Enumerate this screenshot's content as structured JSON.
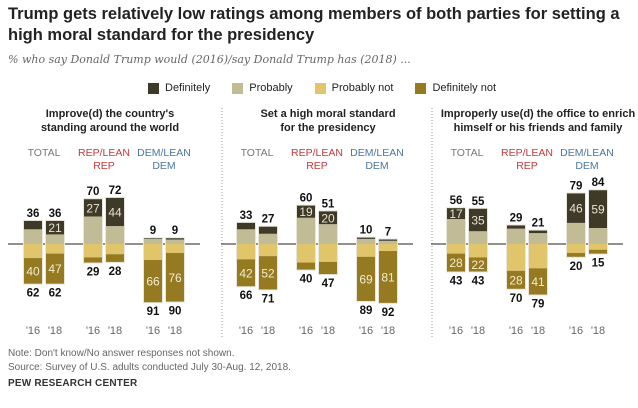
{
  "title": "Trump gets relatively low ratings among members of both parties for setting a high moral standard for the presidency",
  "subtitle": "% who say Donald Trump would (2016)/say Donald Trump has (2018) ...",
  "legend": [
    {
      "label": "Definitely",
      "color": "#3f3a28"
    },
    {
      "label": "Probably",
      "color": "#c2bc96"
    },
    {
      "label": "Probably not",
      "color": "#e0c56a"
    },
    {
      "label": "Definitely not",
      "color": "#957a22"
    }
  ],
  "group_colors": {
    "TOTAL": "#777777",
    "REP/LEAN REP": "#c8383a",
    "DEM/LEAN DEM": "#4b76a0"
  },
  "chart_data": {
    "type": "bar",
    "stacked": "diverging",
    "years": [
      "'16",
      "'18"
    ],
    "groups": [
      "TOTAL",
      "REP/LEAN REP",
      "DEM/LEAN DEM"
    ],
    "panels": [
      {
        "title_lines": [
          "Improve(d) the country's",
          "standing around the world"
        ],
        "bars": [
          {
            "group": "TOTAL",
            "year": "'16",
            "definitely": 13,
            "positive_total": 36,
            "definitely_not": 40,
            "negative_total": 62
          },
          {
            "group": "TOTAL",
            "year": "'18",
            "definitely": 21,
            "positive_total": 36,
            "definitely_not": 47,
            "negative_total": 62
          },
          {
            "group": "REP/LEAN REP",
            "year": "'16",
            "definitely": 27,
            "positive_total": 70,
            "definitely_not": 8,
            "negative_total": 29
          },
          {
            "group": "REP/LEAN REP",
            "year": "'18",
            "definitely": 44,
            "positive_total": 72,
            "definitely_not": 12,
            "negative_total": 28
          },
          {
            "group": "DEM/LEAN DEM",
            "year": "'16",
            "definitely": 1,
            "positive_total": 9,
            "definitely_not": 66,
            "negative_total": 91
          },
          {
            "group": "DEM/LEAN DEM",
            "year": "'18",
            "definitely": 2,
            "positive_total": 9,
            "definitely_not": 76,
            "negative_total": 90
          }
        ]
      },
      {
        "title_lines": [
          "Set a high moral standard",
          "for the presidency"
        ],
        "bars": [
          {
            "group": "TOTAL",
            "year": "'16",
            "definitely": 10,
            "positive_total": 33,
            "definitely_not": 42,
            "negative_total": 66
          },
          {
            "group": "TOTAL",
            "year": "'18",
            "definitely": 11,
            "positive_total": 27,
            "definitely_not": 52,
            "negative_total": 71
          },
          {
            "group": "REP/LEAN REP",
            "year": "'16",
            "definitely": 19,
            "positive_total": 60,
            "definitely_not": 11,
            "negative_total": 40
          },
          {
            "group": "REP/LEAN REP",
            "year": "'18",
            "definitely": 20,
            "positive_total": 51,
            "definitely_not": 19,
            "negative_total": 47
          },
          {
            "group": "DEM/LEAN DEM",
            "year": "'16",
            "definitely": 2,
            "positive_total": 10,
            "definitely_not": 69,
            "negative_total": 89
          },
          {
            "group": "DEM/LEAN DEM",
            "year": "'18",
            "definitely": 2,
            "positive_total": 7,
            "definitely_not": 81,
            "negative_total": 92
          }
        ]
      },
      {
        "title_lines": [
          "Improperly use(d) the office to enrich",
          "himself or his friends and family"
        ],
        "bars": [
          {
            "group": "TOTAL",
            "year": "'16",
            "definitely": 17,
            "positive_total": 56,
            "definitely_not": 28,
            "negative_total": 43
          },
          {
            "group": "TOTAL",
            "year": "'18",
            "definitely": 35,
            "positive_total": 55,
            "definitely_not": 22,
            "negative_total": 43
          },
          {
            "group": "REP/LEAN REP",
            "year": "'16",
            "definitely": 5,
            "positive_total": 29,
            "definitely_not": 28,
            "negative_total": 70
          },
          {
            "group": "REP/LEAN REP",
            "year": "'18",
            "definitely": 4,
            "positive_total": 21,
            "definitely_not": 41,
            "negative_total": 79
          },
          {
            "group": "DEM/LEAN DEM",
            "year": "'16",
            "definitely": 46,
            "positive_total": 79,
            "definitely_not": 6,
            "negative_total": 20
          },
          {
            "group": "DEM/LEAN DEM",
            "year": "'18",
            "definitely": 59,
            "positive_total": 84,
            "definitely_not": 6,
            "negative_total": 15
          }
        ]
      }
    ]
  },
  "group_label_lines": [
    [
      "TOTAL"
    ],
    [
      "REP/LEAN",
      "REP"
    ],
    [
      "DEM/LEAN",
      "DEM"
    ]
  ],
  "notes": {
    "note": "Note: Don't know/No answer responses not shown.",
    "source": "Source: Survey of U.S. adults conducted July 30-Aug. 12, 2018.",
    "org": "PEW RESEARCH CENTER"
  }
}
